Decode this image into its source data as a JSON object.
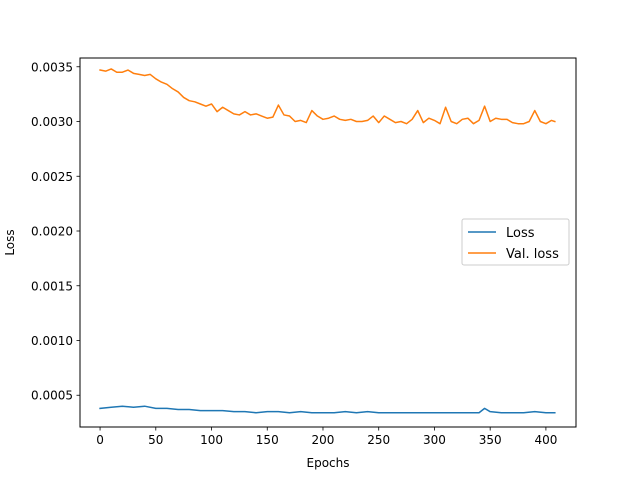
{
  "chart_data": {
    "type": "line",
    "title": "",
    "xlabel": "Epochs",
    "ylabel": "Loss",
    "xlim": [
      -18,
      427
    ],
    "ylim": [
      0.00021,
      0.00358
    ],
    "xticks": [
      0,
      50,
      100,
      150,
      200,
      250,
      300,
      350,
      400
    ],
    "xtick_labels": [
      "0",
      "50",
      "100",
      "150",
      "200",
      "250",
      "300",
      "350",
      "400"
    ],
    "yticks": [
      0.0005,
      0.001,
      0.0015,
      0.002,
      0.0025,
      0.003,
      0.0035
    ],
    "ytick_labels": [
      "0.0005",
      "0.0010",
      "0.0015",
      "0.0020",
      "0.0025",
      "0.0030",
      "0.0035"
    ],
    "grid": false,
    "legend_position": "center-right",
    "series": [
      {
        "name": "Loss",
        "color": "#1f77b4",
        "x": [
          0,
          10,
          20,
          30,
          40,
          50,
          60,
          70,
          80,
          90,
          100,
          110,
          120,
          130,
          140,
          150,
          160,
          170,
          180,
          190,
          200,
          210,
          220,
          230,
          240,
          250,
          260,
          270,
          280,
          290,
          300,
          310,
          320,
          330,
          340,
          345,
          350,
          360,
          370,
          380,
          390,
          400,
          408
        ],
        "y": [
          0.00038,
          0.00039,
          0.0004,
          0.00039,
          0.0004,
          0.00038,
          0.00038,
          0.00037,
          0.00037,
          0.00036,
          0.00036,
          0.00036,
          0.00035,
          0.00035,
          0.00034,
          0.00035,
          0.00035,
          0.00034,
          0.00035,
          0.00034,
          0.00034,
          0.00034,
          0.00035,
          0.00034,
          0.00035,
          0.00034,
          0.00034,
          0.00034,
          0.00034,
          0.00034,
          0.00034,
          0.00034,
          0.00034,
          0.00034,
          0.00034,
          0.00038,
          0.00035,
          0.00034,
          0.00034,
          0.00034,
          0.00035,
          0.00034,
          0.00034
        ]
      },
      {
        "name": "Val. loss",
        "color": "#ff7f0e",
        "x": [
          0,
          5,
          10,
          15,
          20,
          25,
          30,
          35,
          40,
          45,
          50,
          55,
          60,
          65,
          70,
          75,
          80,
          85,
          90,
          95,
          100,
          105,
          110,
          115,
          120,
          125,
          130,
          135,
          140,
          145,
          150,
          155,
          160,
          165,
          170,
          175,
          180,
          185,
          190,
          195,
          200,
          205,
          210,
          215,
          220,
          225,
          230,
          235,
          240,
          245,
          250,
          255,
          260,
          265,
          270,
          275,
          280,
          285,
          290,
          295,
          300,
          305,
          310,
          315,
          320,
          325,
          330,
          335,
          340,
          345,
          350,
          355,
          360,
          365,
          370,
          375,
          380,
          385,
          390,
          395,
          400,
          405,
          408
        ],
        "y": [
          0.00347,
          0.00346,
          0.00348,
          0.00345,
          0.00345,
          0.00347,
          0.00344,
          0.00343,
          0.00342,
          0.00343,
          0.00339,
          0.00336,
          0.00334,
          0.0033,
          0.00327,
          0.00322,
          0.00319,
          0.00318,
          0.00316,
          0.00314,
          0.00316,
          0.00309,
          0.00313,
          0.0031,
          0.00307,
          0.00306,
          0.00309,
          0.00306,
          0.00307,
          0.00305,
          0.00303,
          0.00304,
          0.00315,
          0.00306,
          0.00305,
          0.003,
          0.00301,
          0.00299,
          0.0031,
          0.00305,
          0.00302,
          0.00303,
          0.00305,
          0.00302,
          0.00301,
          0.00302,
          0.003,
          0.003,
          0.00301,
          0.00305,
          0.00299,
          0.00305,
          0.00302,
          0.00299,
          0.003,
          0.00298,
          0.00302,
          0.0031,
          0.00299,
          0.00303,
          0.00301,
          0.00298,
          0.00313,
          0.003,
          0.00298,
          0.00302,
          0.00303,
          0.00298,
          0.00301,
          0.00314,
          0.003,
          0.00303,
          0.00302,
          0.00302,
          0.00299,
          0.00298,
          0.00298,
          0.003,
          0.0031,
          0.003,
          0.00298,
          0.00301,
          0.003
        ]
      }
    ]
  }
}
